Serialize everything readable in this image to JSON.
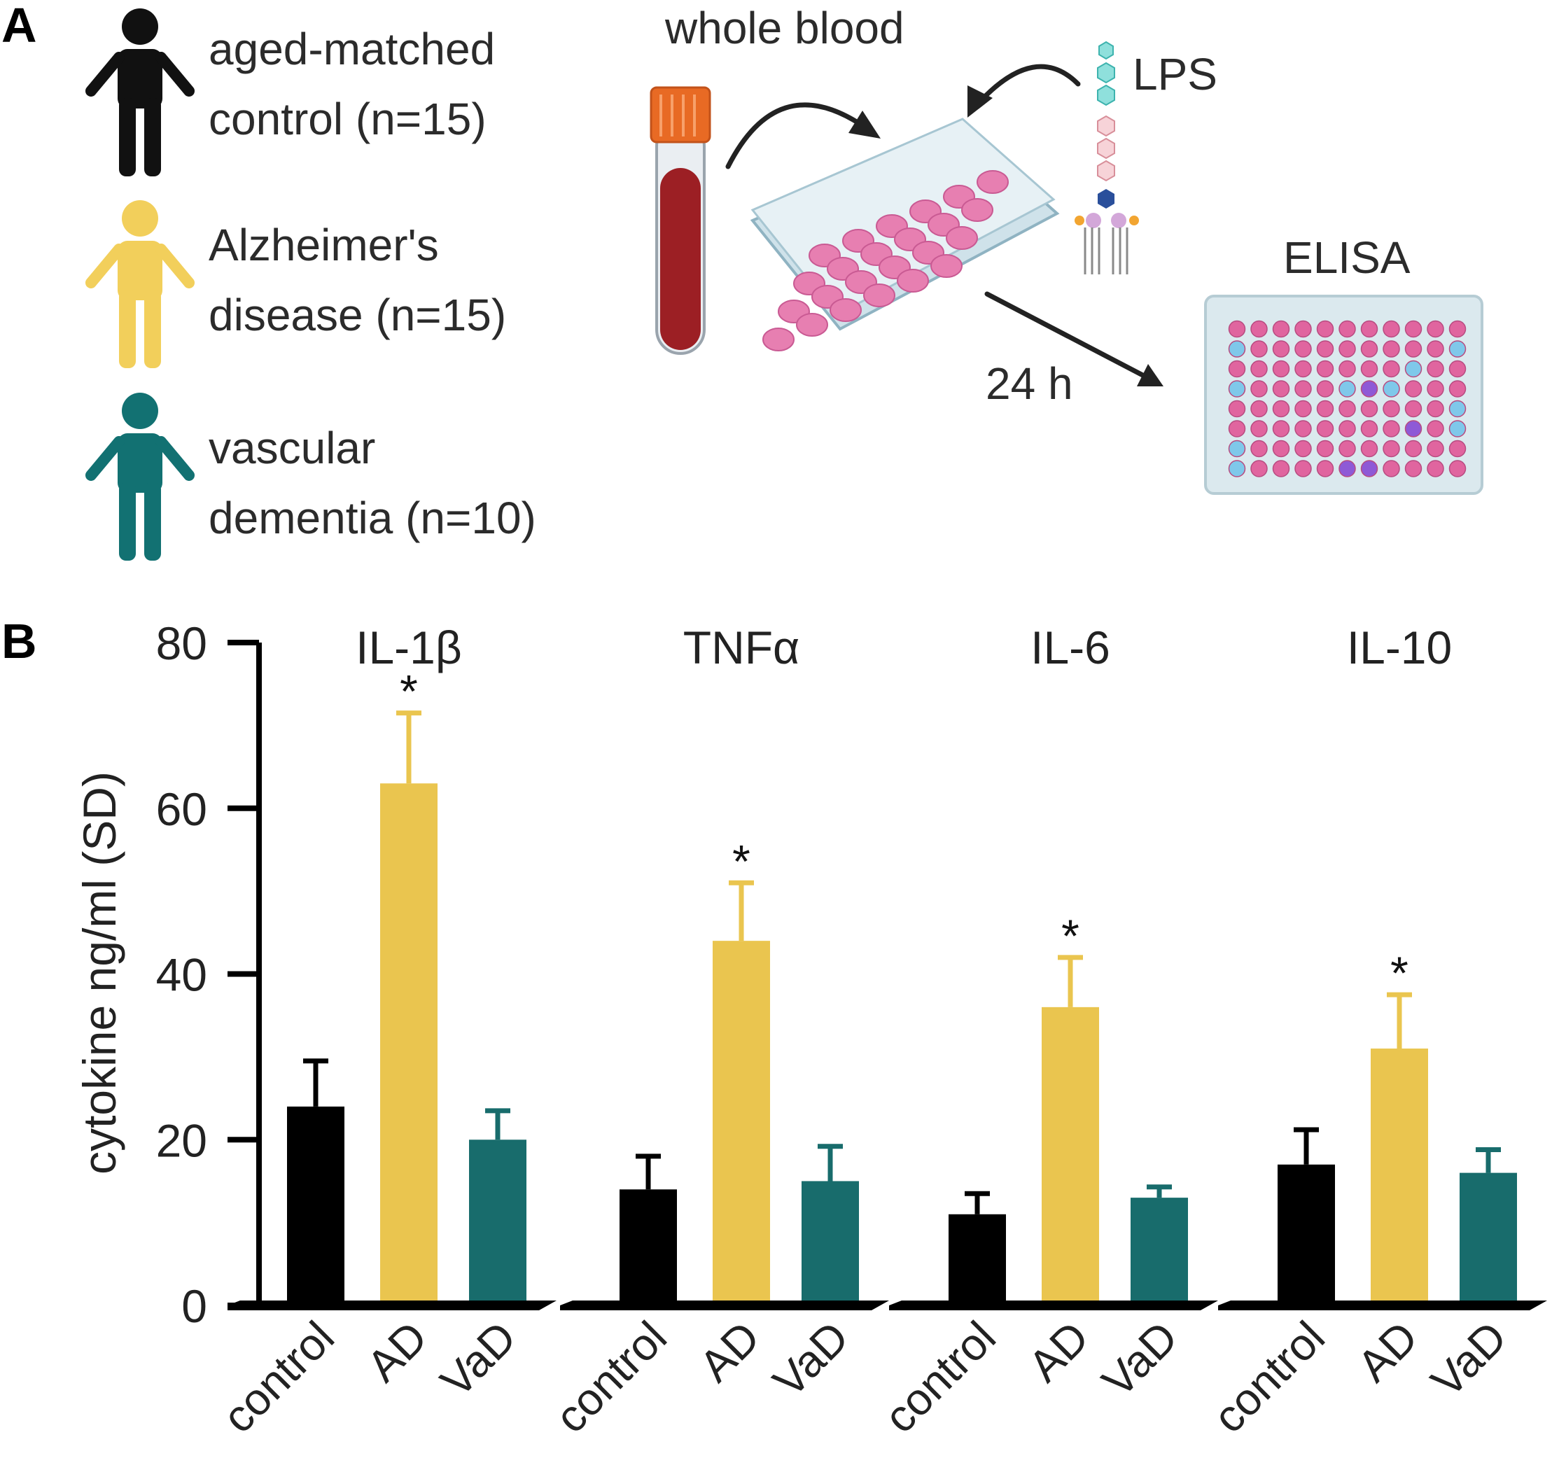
{
  "panel_a": {
    "letter": "A",
    "groups": [
      {
        "line1": "aged-matched",
        "line2": "control (n=15)",
        "color": "#111111"
      },
      {
        "line1": "Alzheimer's",
        "line2": "disease (n=15)",
        "color": "#f2cf5b"
      },
      {
        "line1": "vascular",
        "line2": "dementia (n=10)",
        "color": "#127172"
      }
    ],
    "whole_blood": "whole blood",
    "lps": "LPS",
    "elisa": "ELISA",
    "time": "24 h"
  },
  "panel_b": {
    "letter": "B"
  },
  "colors": {
    "control": "#000000",
    "AD": "#eac54f",
    "VaD": "#186c6c",
    "axis": "#000000"
  },
  "chart_data": {
    "type": "bar",
    "ylabel": "cytokine ng/ml (SD)",
    "ylim": [
      0,
      80
    ],
    "yticks": [
      "80",
      "60",
      "40",
      "20",
      "0"
    ],
    "yticks_values": [
      80,
      60,
      40,
      20,
      0
    ],
    "categories": [
      "control",
      "AD",
      "VaD"
    ],
    "panels": [
      {
        "title": "IL-1β",
        "values": [
          24,
          63,
          20
        ],
        "errors": [
          5.5,
          8.5,
          3.5
        ],
        "significance": [
          "",
          "*",
          ""
        ]
      },
      {
        "title": "TNFα",
        "values": [
          14,
          44,
          15
        ],
        "errors": [
          4,
          7,
          4.2
        ],
        "significance": [
          "",
          "*",
          ""
        ]
      },
      {
        "title": "IL-6",
        "values": [
          11,
          36,
          13
        ],
        "errors": [
          2.5,
          6,
          1.3
        ],
        "significance": [
          "",
          "*",
          ""
        ]
      },
      {
        "title": "IL-10",
        "values": [
          17,
          31,
          16
        ],
        "errors": [
          4.2,
          6.5,
          2.8
        ],
        "significance": [
          "",
          "*",
          ""
        ]
      }
    ]
  }
}
